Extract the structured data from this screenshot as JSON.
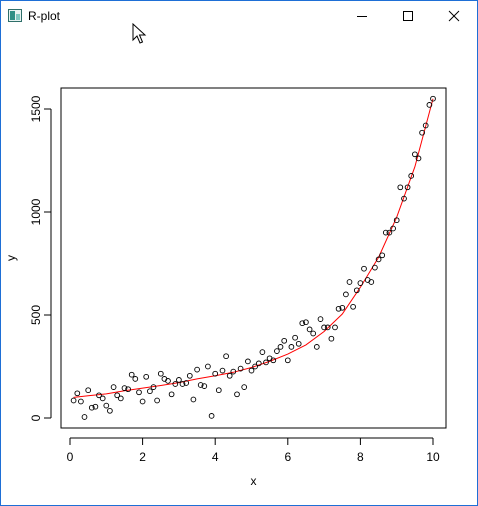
{
  "window": {
    "title": "R-plot",
    "icons": {
      "app": "r-graphics-icon",
      "minimize": "minimize-icon",
      "maximize": "maximize-icon",
      "close": "close-icon"
    }
  },
  "chart_data": {
    "type": "scatter",
    "title": "",
    "xlabel": "x",
    "ylabel": "y",
    "xlim": [
      0,
      10
    ],
    "ylim": [
      0,
      1550
    ],
    "xticks": [
      0,
      2,
      4,
      6,
      8,
      10
    ],
    "yticks": [
      0,
      500,
      1000,
      1500
    ],
    "xtick_labels": [
      "0",
      "2",
      "4",
      "6",
      "8",
      "10"
    ],
    "ytick_labels": [
      "0",
      "500",
      "1000",
      "1500"
    ],
    "grid": false,
    "legend": "none",
    "point_color": "#000000",
    "line_color": "#ff0000",
    "points": {
      "x": [
        0.1,
        0.2,
        0.3,
        0.4,
        0.5,
        0.6,
        0.7,
        0.8,
        0.9,
        1.0,
        1.1,
        1.2,
        1.3,
        1.4,
        1.5,
        1.6,
        1.7,
        1.8,
        1.9,
        2.0,
        2.1,
        2.2,
        2.3,
        2.4,
        2.5,
        2.6,
        2.7,
        2.8,
        2.9,
        3.0,
        3.1,
        3.2,
        3.3,
        3.4,
        3.5,
        3.6,
        3.7,
        3.8,
        3.9,
        4.0,
        4.1,
        4.2,
        4.3,
        4.4,
        4.5,
        4.6,
        4.7,
        4.8,
        4.9,
        5.0,
        5.1,
        5.2,
        5.3,
        5.4,
        5.5,
        5.6,
        5.7,
        5.8,
        5.9,
        6.0,
        6.1,
        6.2,
        6.3,
        6.4,
        6.5,
        6.6,
        6.7,
        6.8,
        6.9,
        7.0,
        7.1,
        7.2,
        7.3,
        7.4,
        7.5,
        7.6,
        7.7,
        7.8,
        7.9,
        8.0,
        8.1,
        8.2,
        8.3,
        8.4,
        8.5,
        8.6,
        8.7,
        8.8,
        8.9,
        9.0,
        9.1,
        9.2,
        9.3,
        9.4,
        9.5,
        9.6,
        9.7,
        9.8,
        9.9,
        10.0
      ],
      "y": [
        85,
        120,
        80,
        5,
        135,
        50,
        55,
        110,
        95,
        60,
        35,
        150,
        110,
        95,
        145,
        140,
        210,
        190,
        125,
        80,
        200,
        130,
        150,
        85,
        215,
        190,
        180,
        115,
        165,
        185,
        165,
        170,
        205,
        90,
        235,
        160,
        155,
        250,
        10,
        215,
        135,
        230,
        300,
        205,
        225,
        115,
        240,
        150,
        275,
        230,
        250,
        265,
        320,
        270,
        290,
        280,
        325,
        345,
        375,
        280,
        345,
        390,
        360,
        460,
        465,
        430,
        410,
        345,
        480,
        440,
        440,
        385,
        440,
        530,
        535,
        600,
        660,
        540,
        620,
        655,
        725,
        670,
        660,
        730,
        770,
        790,
        900,
        900,
        920,
        960,
        1120,
        1065,
        1120,
        1175,
        1280,
        1260,
        1385,
        1420,
        1520,
        1550
      ]
    },
    "fit_line": {
      "x": [
        0.1,
        0.5,
        1.0,
        1.5,
        2.0,
        2.5,
        3.0,
        3.5,
        4.0,
        4.5,
        5.0,
        5.5,
        6.0,
        6.5,
        7.0,
        7.5,
        8.0,
        8.5,
        9.0,
        9.5,
        10.0
      ],
      "y": [
        100,
        108,
        117,
        132,
        145,
        158,
        172,
        190,
        205,
        222,
        245,
        275,
        310,
        355,
        420,
        505,
        635,
        780,
        975,
        1220,
        1550
      ]
    }
  }
}
